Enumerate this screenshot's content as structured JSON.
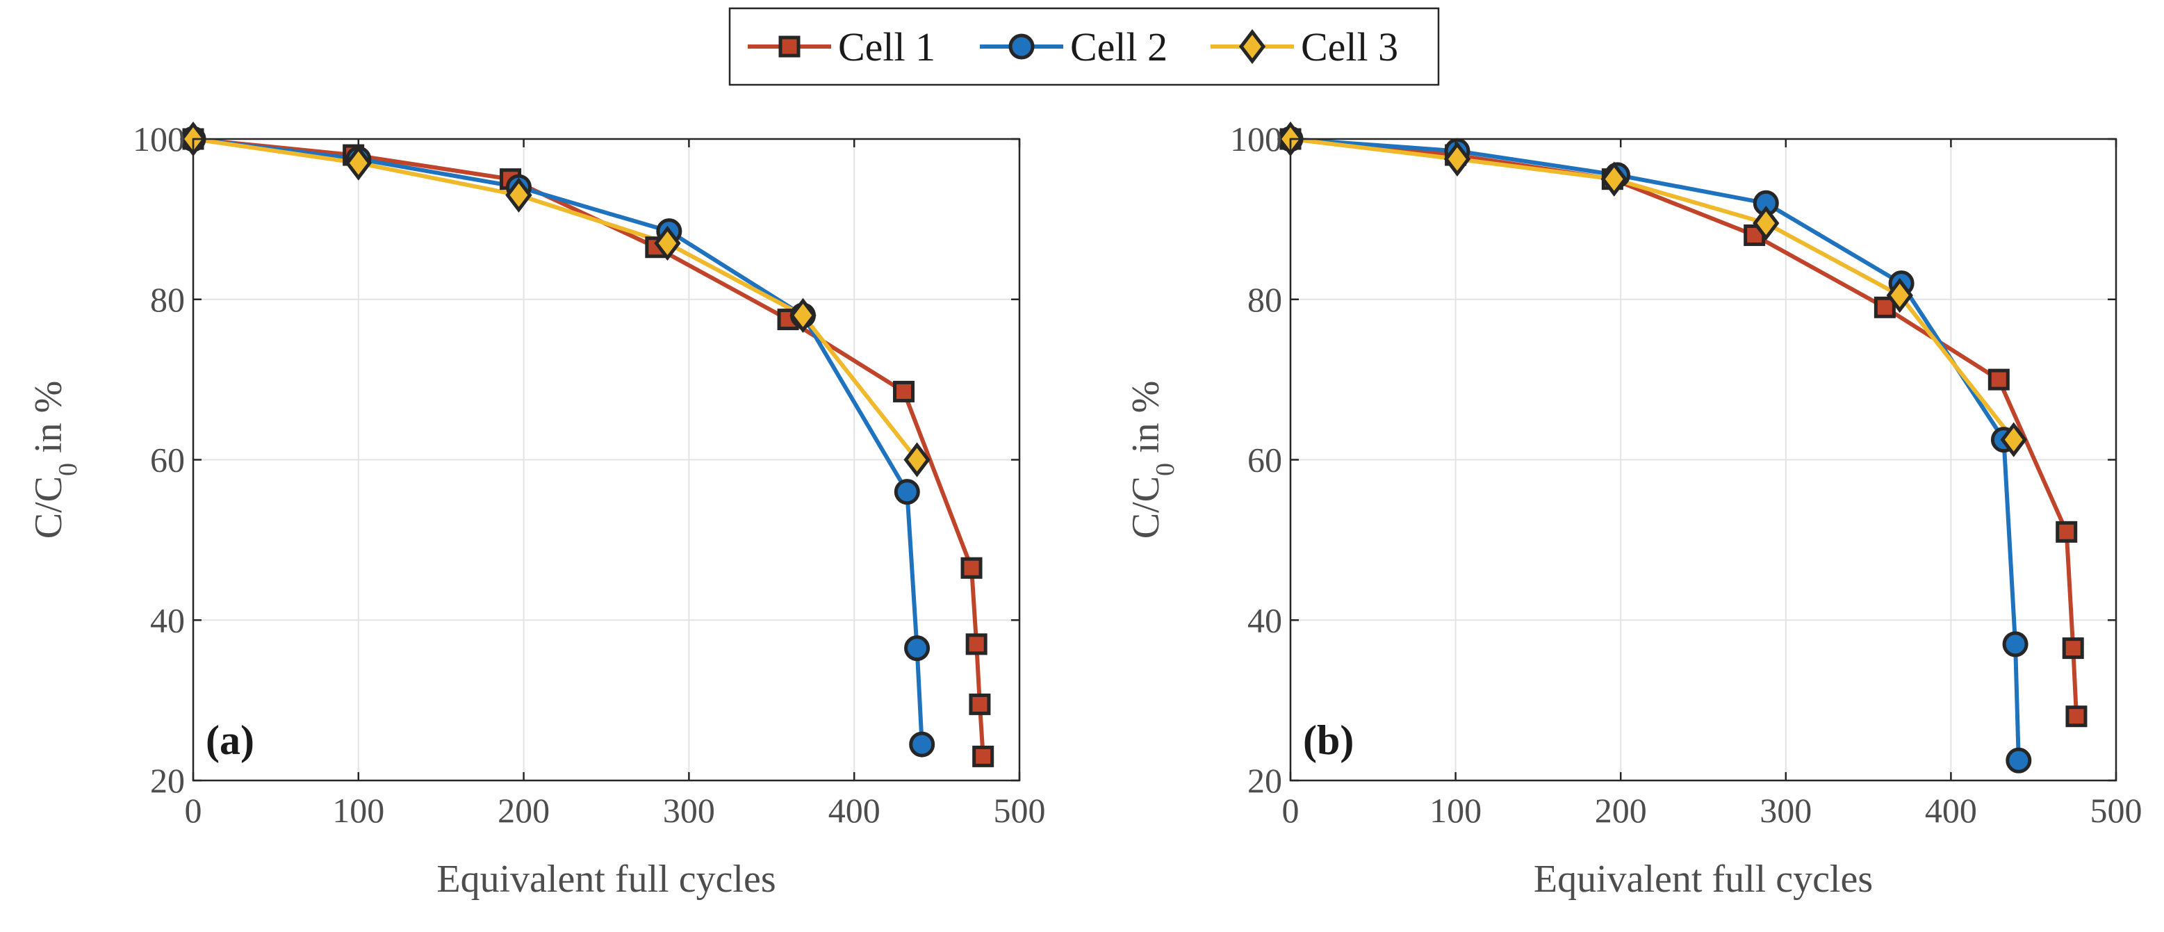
{
  "chart_data": [
    {
      "type": "line",
      "panel_label": "(a)",
      "xlabel": "Equivalent full cycles",
      "ylabel": {
        "main": "C/C",
        "subscript": "0",
        "suffix": " in %"
      },
      "xlim": [
        0,
        500
      ],
      "ylim": [
        20,
        100
      ],
      "xticks": [
        0,
        100,
        200,
        300,
        400,
        500
      ],
      "yticks": [
        20,
        40,
        60,
        80,
        100
      ],
      "grid": true,
      "series": [
        {
          "name": "Cell 1",
          "x": [
            0,
            97,
            192,
            280,
            360,
            430,
            471,
            474,
            476,
            478
          ],
          "y": [
            100,
            98,
            95,
            86.5,
            77.5,
            68.5,
            46.5,
            37,
            29.5,
            23
          ]
        },
        {
          "name": "Cell 2",
          "x": [
            0,
            100,
            197,
            288,
            369,
            432,
            438,
            441
          ],
          "y": [
            100,
            97.5,
            94,
            88.5,
            78,
            56,
            36.5,
            24.5
          ]
        },
        {
          "name": "Cell 3",
          "x": [
            0,
            100,
            197,
            287,
            369,
            438
          ],
          "y": [
            100,
            97,
            93,
            87,
            78,
            60
          ]
        }
      ]
    },
    {
      "type": "line",
      "panel_label": "(b)",
      "xlabel": "Equivalent full cycles",
      "ylabel": {
        "main": "C/C",
        "subscript": "0",
        "suffix": " in %"
      },
      "xlim": [
        0,
        500
      ],
      "ylim": [
        20,
        100
      ],
      "xticks": [
        0,
        100,
        200,
        300,
        400,
        500
      ],
      "yticks": [
        20,
        40,
        60,
        80,
        100
      ],
      "grid": true,
      "series": [
        {
          "name": "Cell 1",
          "x": [
            0,
            100,
            195,
            281,
            360,
            429,
            470,
            474,
            476
          ],
          "y": [
            100,
            98,
            95,
            88,
            79,
            70,
            51,
            36.5,
            28
          ]
        },
        {
          "name": "Cell 2",
          "x": [
            0,
            101,
            198,
            288,
            370,
            432,
            439,
            441
          ],
          "y": [
            100,
            98.5,
            95.5,
            92,
            82,
            62.5,
            37,
            22.5
          ]
        },
        {
          "name": "Cell 3",
          "x": [
            0,
            101,
            196,
            288,
            369,
            438
          ],
          "y": [
            100,
            97.5,
            95,
            89.5,
            80.5,
            62.5
          ]
        }
      ]
    }
  ],
  "legend": {
    "position": "top-center",
    "entries": [
      {
        "name": "Cell 1",
        "marker": "square"
      },
      {
        "name": "Cell 2",
        "marker": "circle"
      },
      {
        "name": "Cell 3",
        "marker": "diamond"
      }
    ]
  },
  "colors": {
    "Cell 1": {
      "line": "#c0442a",
      "fill": "#c0442a"
    },
    "Cell 2": {
      "line": "#1f72bd",
      "fill": "#1f72bd"
    },
    "Cell 3": {
      "line": "#f0b82b",
      "fill": "#f0b82b"
    },
    "marker_edge": "#262626"
  }
}
